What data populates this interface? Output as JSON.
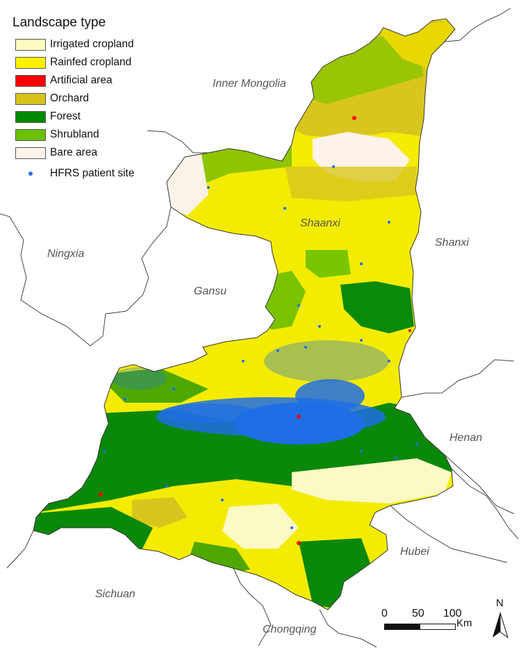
{
  "legend": {
    "title": "Landscape type",
    "items": [
      {
        "label": "Irrigated cropland",
        "color": "#fdfcc0"
      },
      {
        "label": "Rainfed cropland",
        "color": "#fdf200"
      },
      {
        "label": "Artificial area",
        "color": "#ff0000"
      },
      {
        "label": "Orchard",
        "color": "#d7c31a"
      },
      {
        "label": "Forest",
        "color": "#008a00"
      },
      {
        "label": "Shrubland",
        "color": "#6ac100"
      },
      {
        "label": "Bare area",
        "color": "#fdf3ea"
      }
    ],
    "point_label": "HFRS patient site",
    "point_color": "#1e6fe6"
  },
  "provinces": {
    "inner_mongolia": "Inner Mongolia",
    "shaanxi": "Shaanxi",
    "shanxi": "Shanxi",
    "ningxia": "Ningxia",
    "gansu": "Gansu",
    "henan": "Henan",
    "hubei": "Hubei",
    "sichuan": "Sichuan",
    "chongqing": "Chongqing"
  },
  "scale": {
    "ticks": [
      "0",
      "50",
      "100"
    ],
    "unit": "Km"
  },
  "north": "N"
}
